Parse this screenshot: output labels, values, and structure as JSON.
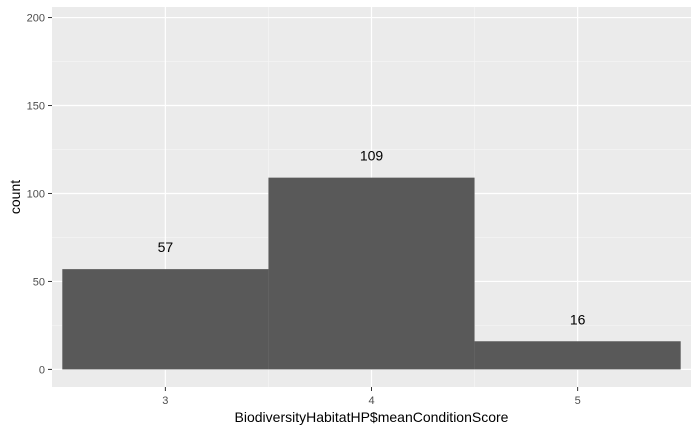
{
  "chart_data": {
    "type": "bar",
    "x": [
      3,
      4,
      5
    ],
    "values": [
      57,
      109,
      16
    ],
    "data_labels": [
      "57",
      "109",
      "16"
    ],
    "xlabel": "BiodiversityHabitatHP$meanConditionScore",
    "ylabel": "count",
    "xlim": [
      2.45,
      5.55
    ],
    "ylim": [
      -10,
      206
    ],
    "x_ticks": [
      3,
      4,
      5
    ],
    "y_ticks": [
      0,
      50,
      100,
      150,
      200
    ],
    "x_tick_labels": [
      "3",
      "4",
      "5"
    ],
    "y_tick_labels": [
      "0",
      "50",
      "100",
      "150",
      "200"
    ],
    "bin_width": 1,
    "grid": true,
    "legend": "none",
    "colors": {
      "bar_fill": "#595959",
      "panel_background": "#ebebeb",
      "grid_major": "#ffffff",
      "grid_minor": "#f5f5f5",
      "tick_text": "#4d4d4d",
      "tick_mark": "#333333"
    }
  }
}
